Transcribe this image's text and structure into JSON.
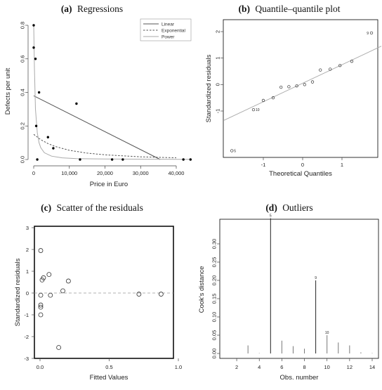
{
  "chart_data": [
    {
      "type": "scatter",
      "title_prefix": "(a)",
      "title": "Regressions",
      "xlabel": "Price in Euro",
      "ylabel": "Defects per unit",
      "xlim": [
        0,
        45000
      ],
      "ylim": [
        0,
        0.8
      ],
      "xticks": [
        "0",
        "10,000",
        "20,000",
        "30,000",
        "40,000"
      ],
      "yticks": [
        "0.0",
        "0.2",
        "0.4",
        "0.6",
        "0.8"
      ],
      "legend_position": "top-right",
      "points": {
        "x": [
          0,
          0,
          500,
          700,
          1000,
          1500,
          4000,
          5500,
          12000,
          13000,
          22000,
          25000,
          42000,
          44000
        ],
        "y": [
          0.8,
          0.667,
          0.6,
          0.2,
          0.0,
          0.4,
          0.133,
          0.067,
          0.333,
          0.0,
          0.0,
          0.0,
          0.0,
          0.0
        ]
      },
      "series": [
        {
          "name": "Linear",
          "x": [
            0,
            35500
          ],
          "y": [
            0.38,
            0.0
          ]
        },
        {
          "name": "Exponential",
          "x": [
            0,
            2000,
            4000,
            6000,
            10000,
            15000,
            20000,
            30000,
            40000
          ],
          "y": [
            0.15,
            0.118,
            0.095,
            0.078,
            0.055,
            0.038,
            0.028,
            0.016,
            0.01
          ]
        },
        {
          "name": "Power",
          "x": [
            0,
            200,
            500,
            1000,
            1500,
            2000,
            3000,
            5000,
            8000,
            12000,
            20000,
            30000,
            44000
          ],
          "y": [
            0.8,
            0.55,
            0.3,
            0.16,
            0.1,
            0.07,
            0.04,
            0.02,
            0.01,
            0.005,
            0.003,
            0.002,
            0.001
          ]
        }
      ]
    },
    {
      "type": "scatter",
      "title_prefix": "(b)",
      "title": "Quantile–quantile plot",
      "xlabel": "Theoretical Quantiles",
      "ylabel": "Standardized residuals",
      "xlim": [
        -2,
        2
      ],
      "ylim": [
        -2.6,
        2.5
      ],
      "xticks": [
        "-1",
        "0",
        "1"
      ],
      "yticks": [
        "-1",
        "0",
        "1",
        "2"
      ],
      "reference_line": {
        "x": [
          -2,
          2
        ],
        "y": [
          -1.35,
          1.45
        ]
      },
      "x": [
        -1.8,
        -1.25,
        -1.0,
        -0.75,
        -0.55,
        -0.35,
        -0.15,
        0.05,
        0.25,
        0.45,
        0.7,
        0.95,
        1.25,
        1.75
      ],
      "y": [
        -2.5,
        -0.95,
        -0.6,
        -0.5,
        -0.1,
        -0.08,
        -0.05,
        0.0,
        0.1,
        0.55,
        0.58,
        0.72,
        0.88,
        1.95
      ],
      "point_labels": [
        {
          "text": "5",
          "index": 0
        },
        {
          "text": "10",
          "index": 1
        },
        {
          "text": "9",
          "index": 13
        }
      ]
    },
    {
      "type": "scatter",
      "title_prefix": "(c)",
      "title": "Scatter of the residuals",
      "xlabel": "Fitted Values",
      "ylabel": "Standardized residuals",
      "xlim": [
        0,
        1.0
      ],
      "ylim": [
        -3,
        3
      ],
      "xticks": [
        "0.0",
        "0.5",
        "1.0"
      ],
      "yticks": [
        "-3",
        "-2",
        "-1",
        "0",
        "1",
        "2",
        "3"
      ],
      "hline": 0,
      "x": [
        0.0,
        0.0,
        0.0,
        0.0,
        0.0,
        0.01,
        0.02,
        0.06,
        0.07,
        0.13,
        0.16,
        0.2,
        0.71,
        0.87
      ],
      "y": [
        1.95,
        -0.1,
        -0.55,
        -0.65,
        -1.0,
        0.6,
        0.7,
        0.85,
        -0.1,
        -2.5,
        0.1,
        0.55,
        -0.05,
        -0.05
      ]
    },
    {
      "type": "bar",
      "title_prefix": "(d)",
      "title": "Outliers",
      "xlabel": "Obs. number",
      "ylabel": "Cook's distance",
      "xlim": [
        0.5,
        14.5
      ],
      "ylim": [
        0,
        0.4
      ],
      "xticks": [
        "2",
        "4",
        "6",
        "8",
        "10",
        "12",
        "14"
      ],
      "yticks": [
        "0.00",
        "0.05",
        "0.10",
        "0.15",
        "0.20",
        "0.25",
        "0.30"
      ],
      "categories": [
        1,
        2,
        3,
        4,
        5,
        6,
        7,
        8,
        9,
        10,
        11,
        12,
        13,
        14
      ],
      "values": [
        0.0,
        0.0,
        0.022,
        0.001,
        0.37,
        0.035,
        0.02,
        0.013,
        0.2,
        0.05,
        0.03,
        0.022,
        0.003,
        0.001
      ],
      "bar_labels": [
        {
          "text": "5",
          "index": 4
        },
        {
          "text": "9",
          "index": 8
        },
        {
          "text": "10",
          "index": 9
        }
      ]
    }
  ]
}
